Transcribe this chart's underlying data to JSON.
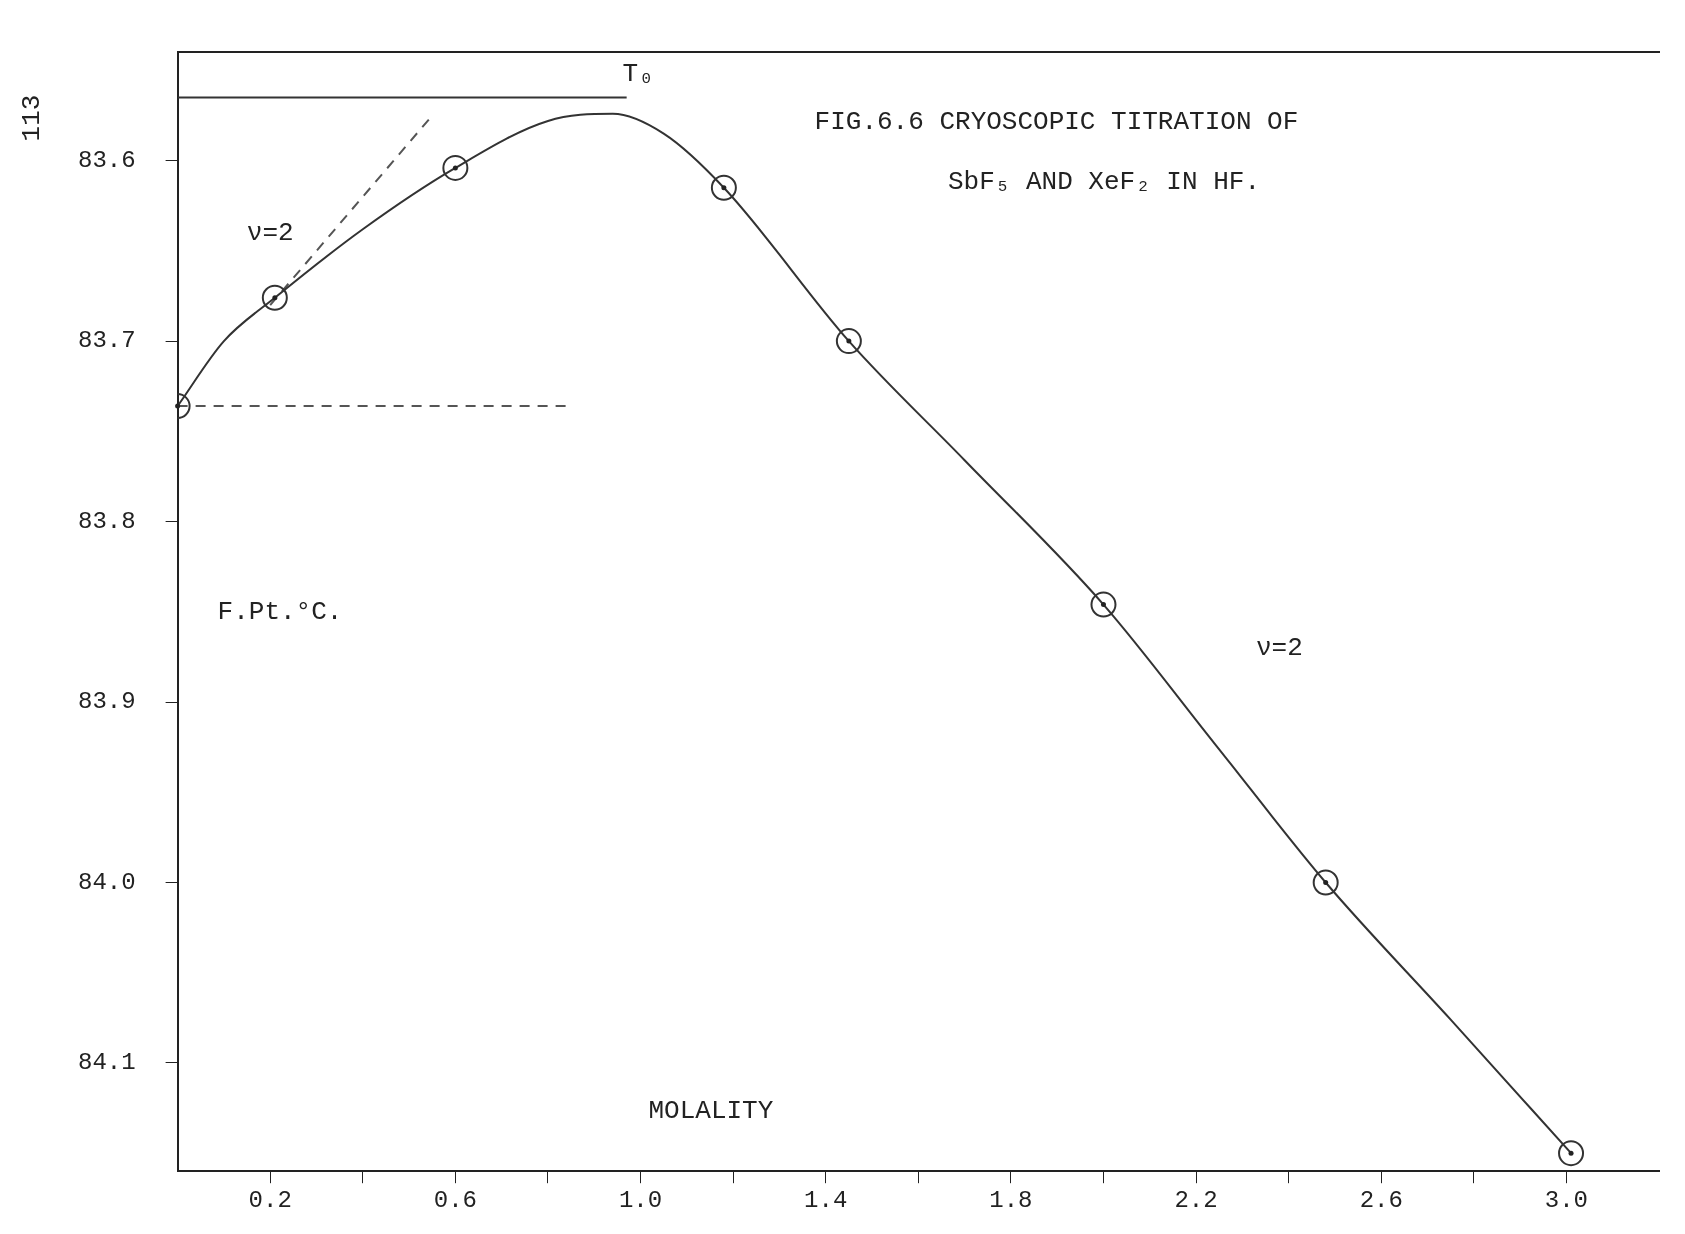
{
  "chart_data": {
    "type": "line",
    "title": "FIG.6.6 CRYOSCOPIC TITRATION OF",
    "subtitle": "SbF₅ AND XeF₂ IN HF.",
    "xlabel": "MOLALITY",
    "ylabel": "F.Pt.°C.",
    "xlim": [
      0,
      3.2
    ],
    "ylim": [
      84.16,
      83.54
    ],
    "xticks": [
      {
        "value": 0.2,
        "label": "0.2"
      },
      {
        "value": 0.4,
        "label": null
      },
      {
        "value": 0.6,
        "label": "0.6"
      },
      {
        "value": 0.8,
        "label": null
      },
      {
        "value": 1.0,
        "label": "1.0"
      },
      {
        "value": 1.2,
        "label": null
      },
      {
        "value": 1.4,
        "label": "1.4"
      },
      {
        "value": 1.6,
        "label": null
      },
      {
        "value": 1.8,
        "label": "1.8"
      },
      {
        "value": 2.0,
        "label": null
      },
      {
        "value": 2.2,
        "label": "2.2"
      },
      {
        "value": 2.4,
        "label": null
      },
      {
        "value": 2.6,
        "label": "2.6"
      },
      {
        "value": 2.8,
        "label": null
      },
      {
        "value": 3.0,
        "label": "3.0"
      }
    ],
    "yticks": [
      {
        "value": 83.6,
        "label": "83.6"
      },
      {
        "value": 83.7,
        "label": "83.7"
      },
      {
        "value": 83.8,
        "label": "83.8"
      },
      {
        "value": 83.9,
        "label": "83.9"
      },
      {
        "value": 84.0,
        "label": "84.0"
      },
      {
        "value": 84.1,
        "label": "84.1"
      }
    ],
    "grid": false,
    "legend": false,
    "series": [
      {
        "type": "line",
        "color": "#333333",
        "marker": "none",
        "line_style": "solid",
        "x": [
          0,
          0.1,
          0.21,
          0.4,
          0.6,
          0.8,
          0.94,
          1.05,
          1.18,
          1.45,
          1.7,
          2.0,
          2.24,
          2.48,
          2.75,
          3.01
        ],
        "values": [
          83.736,
          83.7,
          83.676,
          83.638,
          83.604,
          83.578,
          83.574,
          83.585,
          83.615,
          83.7,
          83.766,
          83.846,
          83.923,
          84.0,
          84.076,
          84.15
        ]
      },
      {
        "type": "scatter",
        "color": "#333333",
        "marker": "circle",
        "x": [
          0,
          0.21,
          0.6,
          1.18,
          1.45,
          2.0,
          2.48,
          3.01
        ],
        "values": [
          83.736,
          83.676,
          83.604,
          83.615,
          83.7,
          83.846,
          84.0,
          84.15
        ]
      },
      {
        "type": "line",
        "color": "#555555",
        "marker": "none",
        "line_style": "dashed",
        "x": [
          0.2,
          0.55
        ],
        "values": [
          83.68,
          83.575
        ]
      },
      {
        "type": "line",
        "color": "#555555",
        "marker": "none",
        "line_style": "dashed",
        "x": [
          0,
          0.85
        ],
        "values": [
          83.736,
          83.736
        ]
      },
      {
        "type": "line",
        "color": "#333333",
        "marker": "none",
        "line_style": "solid",
        "x": [
          0,
          0.97
        ],
        "values": [
          83.565,
          83.565
        ]
      }
    ],
    "annotations": [
      "T₀",
      "ν=2",
      "ν=2",
      "113"
    ]
  }
}
